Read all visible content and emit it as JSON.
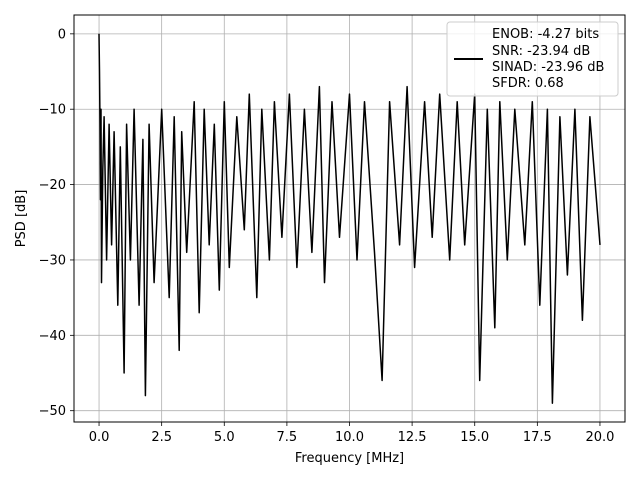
{
  "chart_data": {
    "type": "line",
    "title": "",
    "xlabel": "Frequency [MHz]",
    "ylabel": "PSD [dB]",
    "xlim": [
      -1.0,
      21.0
    ],
    "ylim": [
      -51.5,
      2.5
    ],
    "xticks": [
      0.0,
      2.5,
      5.0,
      7.5,
      10.0,
      12.5,
      15.0,
      17.5,
      20.0
    ],
    "xtick_labels": [
      "0.0",
      "2.5",
      "5.0",
      "7.5",
      "10.0",
      "12.5",
      "15.0",
      "17.5",
      "20.0"
    ],
    "yticks": [
      0,
      -10,
      -20,
      -30,
      -40,
      -50
    ],
    "ytick_labels": [
      "0",
      "−10",
      "−20",
      "−30",
      "−40",
      "−50"
    ],
    "grid": true,
    "legend_position": "top-right",
    "legend_lines": [
      "ENOB: -4.27 bits",
      "SNR: -23.94 dB",
      "SINAD: -23.96 dB",
      "SFDR: 0.68"
    ],
    "series_color": "#000000",
    "series": [
      {
        "x": [
          0.0,
          0.02,
          0.04,
          0.06,
          0.08,
          0.1,
          0.15,
          0.2,
          0.3,
          0.4,
          0.5,
          0.6,
          0.75,
          0.85,
          1.0,
          1.1,
          1.25,
          1.4,
          1.6,
          1.75,
          1.85,
          2.0,
          2.2,
          2.5,
          2.8,
          3.0,
          3.2,
          3.3,
          3.5,
          3.8,
          4.0,
          4.2,
          4.4,
          4.6,
          4.8,
          5.0,
          5.2,
          5.5,
          5.8,
          6.0,
          6.3,
          6.5,
          6.8,
          7.0,
          7.3,
          7.6,
          7.9,
          8.2,
          8.5,
          8.8,
          9.0,
          9.3,
          9.6,
          10.0,
          10.3,
          10.6,
          11.0,
          11.3,
          11.6,
          12.0,
          12.3,
          12.6,
          13.0,
          13.3,
          13.6,
          14.0,
          14.3,
          14.6,
          15.0,
          15.2,
          15.5,
          15.8,
          16.0,
          16.3,
          16.6,
          17.0,
          17.3,
          17.6,
          17.9,
          18.1,
          18.4,
          18.7,
          19.0,
          19.3,
          19.6,
          20.0
        ],
        "y": [
          0.0,
          -5.0,
          -12.0,
          -22.0,
          -10.0,
          -33.0,
          -18.0,
          -11.0,
          -30.0,
          -12.0,
          -28.0,
          -13.0,
          -36.0,
          -15.0,
          -45.0,
          -12.0,
          -30.0,
          -10.0,
          -36.0,
          -14.0,
          -48.0,
          -12.0,
          -33.0,
          -10.0,
          -35.0,
          -11.0,
          -42.0,
          -13.0,
          -29.0,
          -9.0,
          -37.0,
          -10.0,
          -28.0,
          -12.0,
          -34.0,
          -9.0,
          -31.0,
          -11.0,
          -26.0,
          -8.0,
          -35.0,
          -10.0,
          -30.0,
          -9.0,
          -27.0,
          -8.0,
          -31.0,
          -10.0,
          -29.0,
          -7.0,
          -33.0,
          -9.0,
          -27.0,
          -8.0,
          -30.0,
          -9.0,
          -29.0,
          -46.0,
          -9.0,
          -28.0,
          -7.0,
          -31.0,
          -9.0,
          -27.0,
          -8.0,
          -30.0,
          -9.0,
          -28.0,
          -8.0,
          -46.0,
          -10.0,
          -39.0,
          -9.0,
          -30.0,
          -10.0,
          -28.0,
          -9.0,
          -36.0,
          -10.0,
          -49.0,
          -11.0,
          -32.0,
          -10.0,
          -38.0,
          -11.0,
          -28.0
        ]
      }
    ]
  }
}
